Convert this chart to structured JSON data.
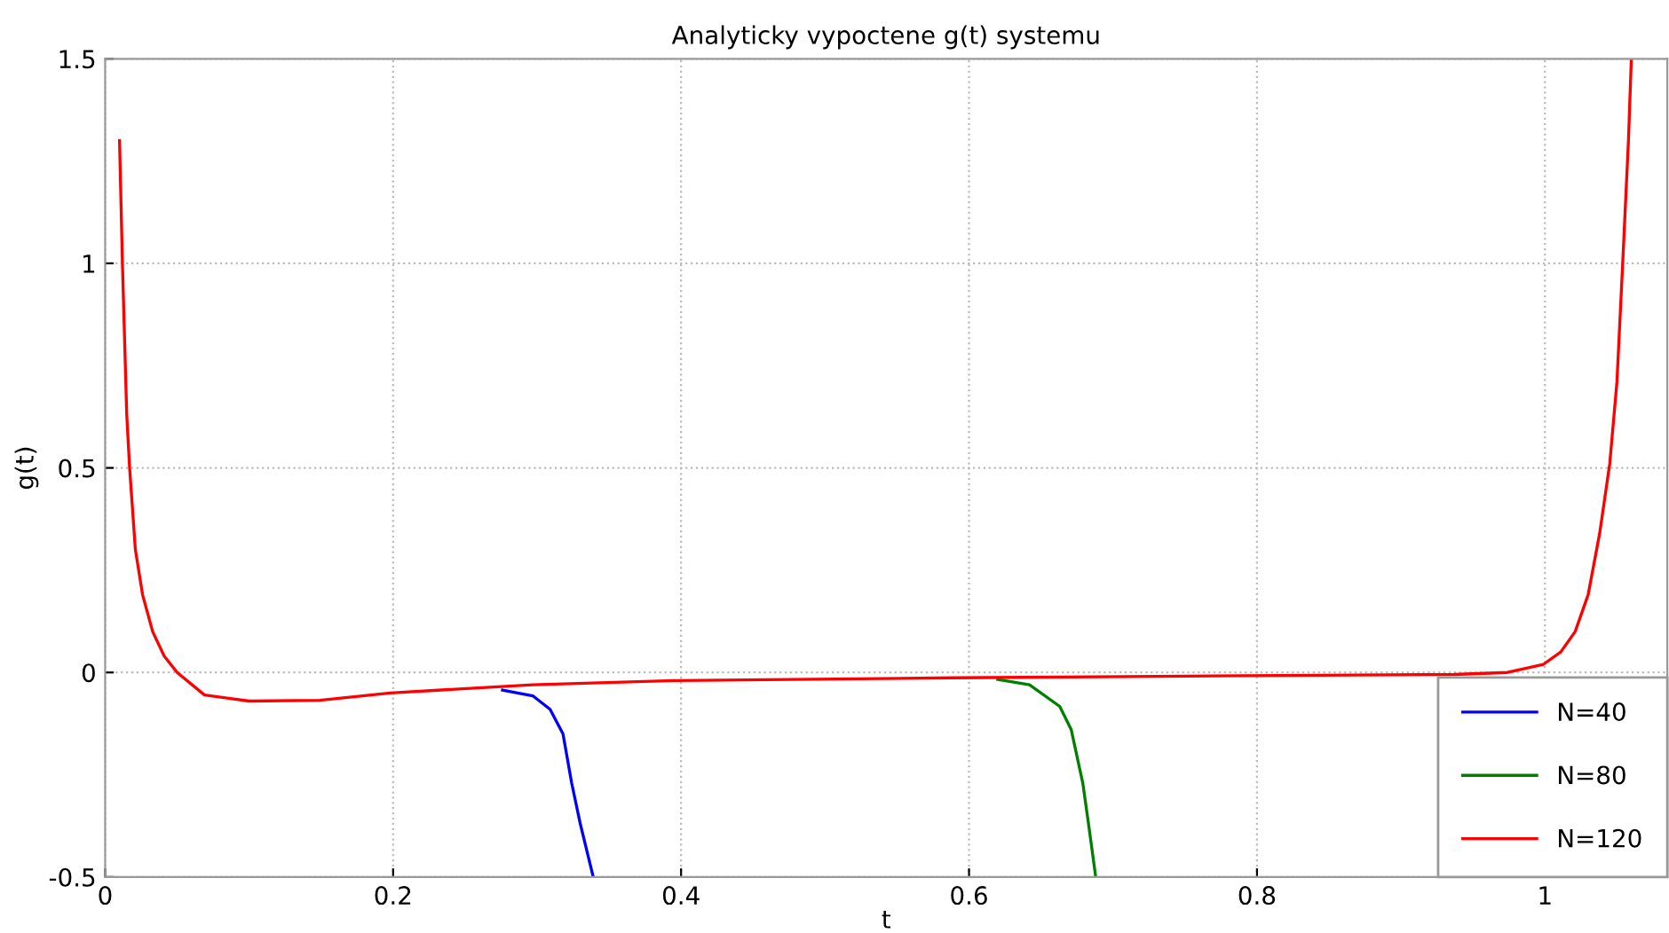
{
  "chart_data": {
    "type": "line",
    "title": "Analyticky vypoctene g(t) systemu",
    "xlabel": "t",
    "ylabel": "g(t)",
    "xlim": [
      0,
      1.085
    ],
    "ylim": [
      -0.5,
      1.5
    ],
    "xticks": [
      0,
      0.2,
      0.4,
      0.6,
      0.8,
      1
    ],
    "yticks": [
      -0.5,
      0,
      0.5,
      1,
      1.5
    ],
    "grid": true,
    "legend": "bottom right",
    "line_style": "solid",
    "marker": "none",
    "series": [
      {
        "name": "N=40",
        "color": "#0000ff",
        "x": [
          0.276,
          0.297,
          0.309,
          0.318,
          0.324,
          0.33,
          0.339
        ],
        "values": [
          -0.043,
          -0.057,
          -0.09,
          -0.15,
          -0.27,
          -0.37,
          -0.5
        ]
      },
      {
        "name": "N=80",
        "color": "#008000",
        "x": [
          0.62,
          0.642,
          0.663,
          0.671,
          0.679,
          0.683,
          0.688
        ],
        "values": [
          -0.017,
          -0.03,
          -0.083,
          -0.14,
          -0.27,
          -0.37,
          -0.5
        ]
      },
      {
        "name": "N=120",
        "color": "#ff0000",
        "x": [
          0.01,
          0.012,
          0.015,
          0.017,
          0.021,
          0.026,
          0.033,
          0.041,
          0.05,
          0.069,
          0.1,
          0.149,
          0.198,
          0.297,
          0.395,
          0.59,
          0.79,
          0.937,
          0.974,
          0.999,
          1.011,
          1.021,
          1.03,
          1.038,
          1.045,
          1.05,
          1.054,
          1.058,
          1.06
        ],
        "values": [
          1.3,
          1.0,
          0.63,
          0.5,
          0.3,
          0.19,
          0.1,
          0.04,
          0.0,
          -0.055,
          -0.07,
          -0.068,
          -0.05,
          -0.03,
          -0.02,
          -0.013,
          -0.008,
          -0.005,
          0.0,
          0.02,
          0.05,
          0.1,
          0.19,
          0.34,
          0.51,
          0.71,
          1.0,
          1.3,
          1.5
        ]
      }
    ]
  }
}
